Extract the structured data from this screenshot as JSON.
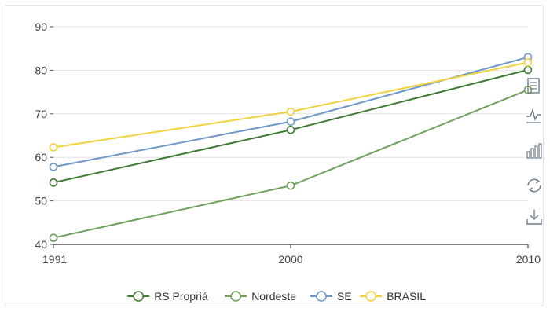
{
  "chart_data": {
    "type": "line",
    "x": [
      "1991",
      "2000",
      "2010"
    ],
    "ylim": [
      40,
      90
    ],
    "yticks": [
      40,
      50,
      60,
      70,
      80,
      90
    ],
    "grid": true,
    "legend_placement": "bottom",
    "series": [
      {
        "name": "RS Propriá",
        "color": "#3f7a34",
        "values": [
          54.2,
          66.3,
          80.1
        ]
      },
      {
        "name": "Nordeste",
        "color": "#6fa15d",
        "values": [
          41.5,
          53.5,
          75.5
        ]
      },
      {
        "name": "SE",
        "color": "#6f98c6",
        "values": [
          57.8,
          68.2,
          83.0
        ]
      },
      {
        "name": "BRASIL",
        "color": "#f2d23c",
        "values": [
          62.3,
          70.5,
          81.8
        ]
      }
    ]
  },
  "toolbox": {
    "items": [
      "data-view-icon",
      "line-chart-icon",
      "bar-chart-icon",
      "restore-icon",
      "save-image-icon"
    ]
  }
}
